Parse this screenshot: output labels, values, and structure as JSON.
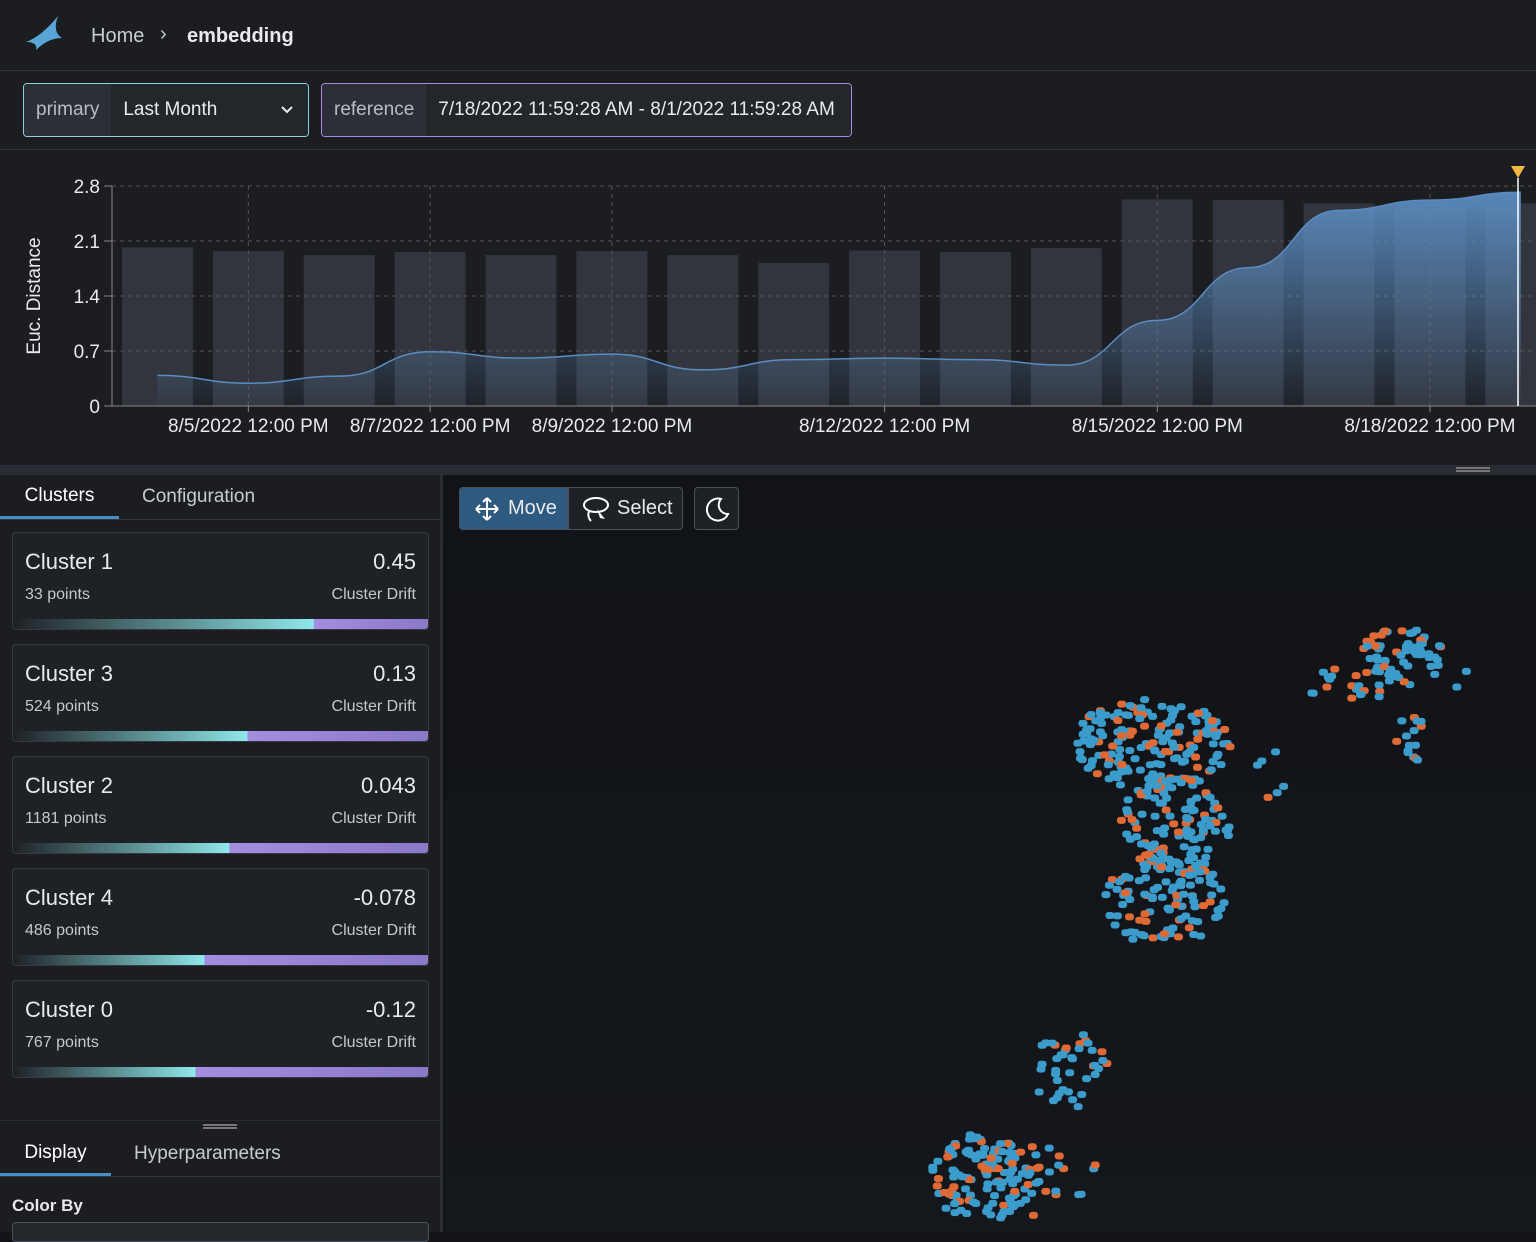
{
  "header": {
    "breadcrumb": [
      "Home",
      "embedding"
    ]
  },
  "time_controls": {
    "primary": {
      "label": "primary",
      "value": "Last Month"
    },
    "reference": {
      "label": "reference",
      "value": "7/18/2022 11:59:28 AM - 8/1/2022 11:59:28 AM"
    }
  },
  "chart_data": {
    "type": "line",
    "y_label": "Euc. Distance",
    "grid": true,
    "ylim": [
      0,
      2.8
    ],
    "yticks": [
      0,
      0.7,
      1.4,
      2.1,
      2.8
    ],
    "xlim": [
      "2022-08-04T00:00",
      "2022-08-19T16:00"
    ],
    "xticks": [
      {
        "value": "2022-08-05T12:00",
        "label": "8/5/2022 12:00 PM"
      },
      {
        "value": "2022-08-07T12:00",
        "label": "8/7/2022 12:00 PM"
      },
      {
        "value": "2022-08-09T12:00",
        "label": "8/9/2022 12:00 PM"
      },
      {
        "value": "2022-08-12T12:00",
        "label": "8/12/2022 12:00 PM"
      },
      {
        "value": "2022-08-15T12:00",
        "label": "8/15/2022 12:00 PM"
      },
      {
        "value": "2022-08-18T12:00",
        "label": "8/18/2022 12:00 PM"
      }
    ],
    "x": [
      "2022-08-04T12:00",
      "2022-08-05T12:00",
      "2022-08-06T12:00",
      "2022-08-07T12:00",
      "2022-08-08T12:00",
      "2022-08-09T12:00",
      "2022-08-10T12:00",
      "2022-08-11T12:00",
      "2022-08-12T12:00",
      "2022-08-13T12:00",
      "2022-08-14T12:00",
      "2022-08-15T12:00",
      "2022-08-16T12:00",
      "2022-08-17T12:00",
      "2022-08-18T12:00",
      "2022-08-19T12:00"
    ],
    "series": [
      {
        "type": "bar",
        "color": "#363a42",
        "values": [
          2.02,
          1.97,
          1.92,
          1.96,
          1.92,
          1.97,
          1.92,
          1.82,
          1.98,
          1.96,
          2.01,
          2.63,
          2.62,
          2.58,
          2.58,
          2.58
        ]
      },
      {
        "type": "area",
        "color": "#5b8cc0",
        "values": [
          0.39,
          0.29,
          0.38,
          0.69,
          0.61,
          0.66,
          0.46,
          0.59,
          0.61,
          0.59,
          0.52,
          1.09,
          1.76,
          2.49,
          2.62,
          2.72
        ]
      }
    ]
  },
  "cluster_tabs": [
    "Clusters",
    "Configuration"
  ],
  "clusters": [
    {
      "name": "Cluster 1",
      "drift": 0.45,
      "points": "33 points",
      "drift_label": "Cluster Drift"
    },
    {
      "name": "Cluster 3",
      "drift": 0.13,
      "points": "524 points",
      "drift_label": "Cluster Drift"
    },
    {
      "name": "Cluster 2",
      "drift": 0.043,
      "points": "1181 points",
      "drift_label": "Cluster Drift"
    },
    {
      "name": "Cluster 4",
      "drift": -0.078,
      "points": "486 points",
      "drift_label": "Cluster Drift"
    },
    {
      "name": "Cluster 0",
      "drift": -0.12,
      "points": "767 points",
      "drift_label": "Cluster Drift"
    }
  ],
  "display_tabs": [
    "Display",
    "Hyperparameters"
  ],
  "color_by_label": "Color By",
  "toolbar": [
    "Move",
    "Select"
  ]
}
